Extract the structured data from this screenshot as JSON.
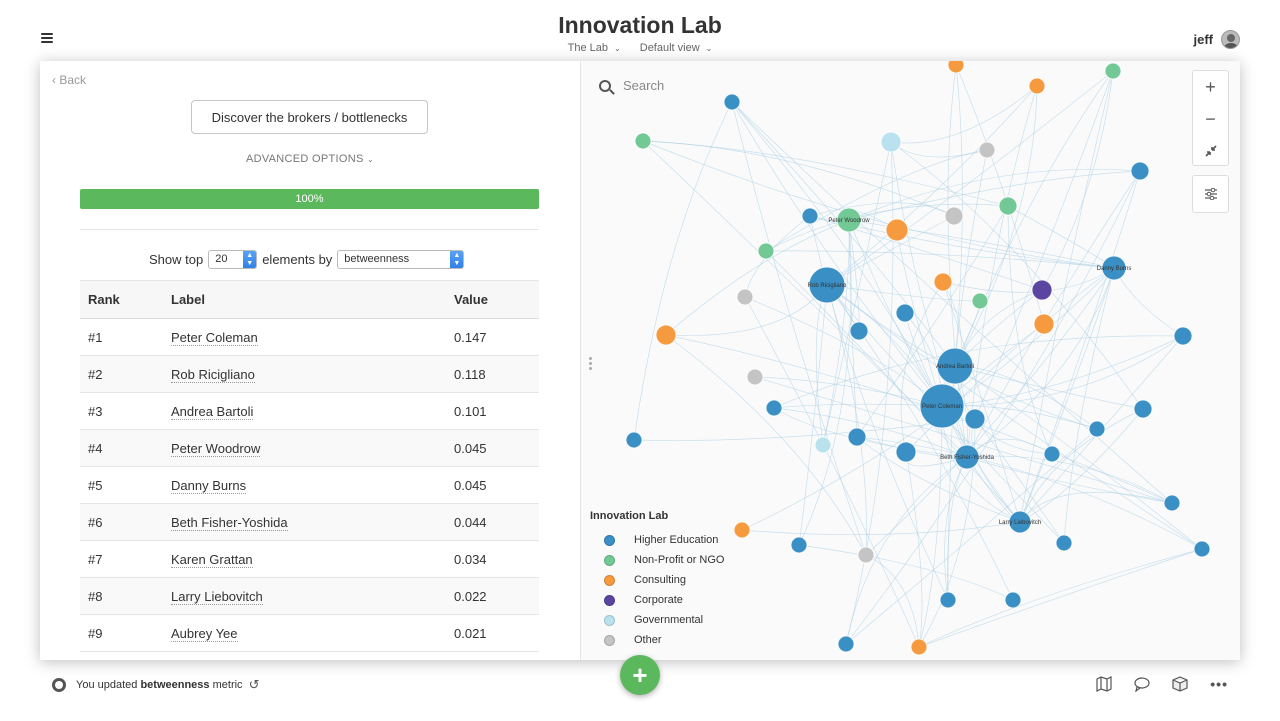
{
  "header": {
    "title": "Innovation Lab",
    "breadcrumb_project": "The Lab",
    "breadcrumb_view": "Default view",
    "user_name": "jeff"
  },
  "left_panel": {
    "back_label": "Back",
    "discover_button": "Discover the brokers / bottlenecks",
    "advanced_options": "ADVANCED OPTIONS",
    "progress_percent": 100,
    "progress_label": "100%",
    "show_top_prefix": "Show top",
    "top_n": "20",
    "elements_by": "elements by",
    "metric": "betweenness",
    "table": {
      "headers": [
        "Rank",
        "Label",
        "Value"
      ],
      "rows": [
        {
          "rank": "#1",
          "label": "Peter Coleman",
          "value": "0.147"
        },
        {
          "rank": "#2",
          "label": "Rob Ricigliano",
          "value": "0.118"
        },
        {
          "rank": "#3",
          "label": "Andrea Bartoli",
          "value": "0.101"
        },
        {
          "rank": "#4",
          "label": "Peter Woodrow",
          "value": "0.045"
        },
        {
          "rank": "#5",
          "label": "Danny Burns",
          "value": "0.045"
        },
        {
          "rank": "#6",
          "label": "Beth Fisher-Yoshida",
          "value": "0.044"
        },
        {
          "rank": "#7",
          "label": "Karen Grattan",
          "value": "0.034"
        },
        {
          "rank": "#8",
          "label": "Larry Liebovitch",
          "value": "0.022"
        },
        {
          "rank": "#9",
          "label": "Aubrey Yee",
          "value": "0.021"
        }
      ]
    }
  },
  "map": {
    "search_placeholder": "Search",
    "legend_title": "Innovation Lab",
    "legend": [
      {
        "label": "Higher Education",
        "color": "#3a8fc4"
      },
      {
        "label": "Non-Profit or NGO",
        "color": "#72c996"
      },
      {
        "label": "Consulting",
        "color": "#f59a3e"
      },
      {
        "label": "Corporate",
        "color": "#5a45a0"
      },
      {
        "label": "Governmental",
        "color": "#b9e2ee"
      },
      {
        "label": "Other",
        "color": "#c4c4c4"
      }
    ],
    "node_labels": {
      "rob": "Rob Ricigliano",
      "andrea": "Andrea Bartoli",
      "peterc": "Peter Coleman",
      "danny": "Danny Burns",
      "peterw": "Peter Woodrow",
      "beth": "Beth Fisher-Yoshida",
      "larry": "Larry Liebovitch"
    }
  },
  "footer": {
    "status_prefix": "You updated",
    "status_metric": "betweenness",
    "status_suffix": "metric"
  }
}
